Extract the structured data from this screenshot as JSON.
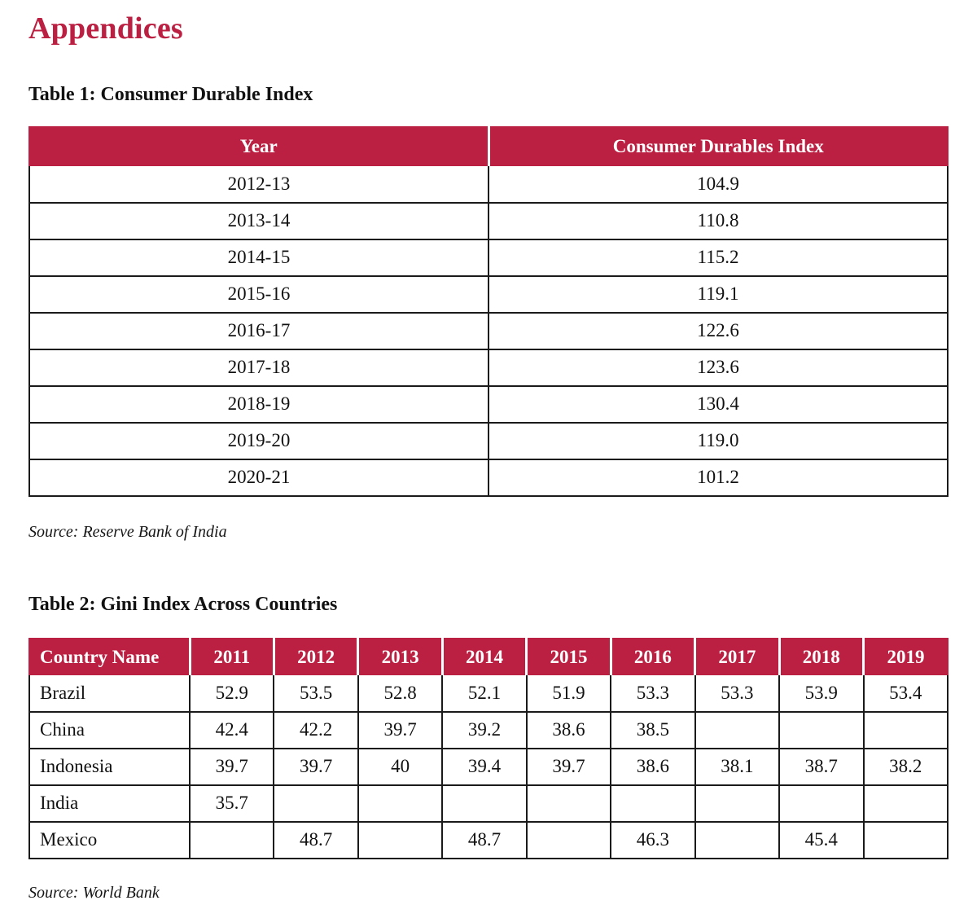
{
  "page": {
    "title": "Appendices"
  },
  "colors": {
    "accent": "#BB2042",
    "border": "#1A1A1A",
    "header_text": "#FFFFFF"
  },
  "table1": {
    "title": "Table 1: Consumer Durable Index",
    "source": "Source: Reserve Bank of India",
    "columns": [
      "Year",
      "Consumer Durables Index"
    ],
    "rows": [
      {
        "year": "2012-13",
        "value": "104.9"
      },
      {
        "year": "2013-14",
        "value": "110.8"
      },
      {
        "year": "2014-15",
        "value": "115.2"
      },
      {
        "year": "2015-16",
        "value": "119.1"
      },
      {
        "year": "2016-17",
        "value": "122.6"
      },
      {
        "year": "2017-18",
        "value": "123.6"
      },
      {
        "year": "2018-19",
        "value": "130.4"
      },
      {
        "year": "2019-20",
        "value": "119.0"
      },
      {
        "year": "2020-21",
        "value": "101.2"
      }
    ]
  },
  "table2": {
    "title": "Table 2: Gini Index Across Countries",
    "source": "Source: World Bank",
    "columns": [
      "Country Name",
      "2011",
      "2012",
      "2013",
      "2014",
      "2015",
      "2016",
      "2017",
      "2018",
      "2019"
    ],
    "rows": [
      {
        "country": "Brazil",
        "values": [
          "52.9",
          "53.5",
          "52.8",
          "52.1",
          "51.9",
          "53.3",
          "53.3",
          "53.9",
          "53.4"
        ]
      },
      {
        "country": "China",
        "values": [
          "42.4",
          "42.2",
          "39.7",
          "39.2",
          "38.6",
          "38.5",
          "",
          "",
          ""
        ]
      },
      {
        "country": "Indonesia",
        "values": [
          "39.7",
          "39.7",
          "40",
          "39.4",
          "39.7",
          "38.6",
          "38.1",
          "38.7",
          "38.2"
        ]
      },
      {
        "country": "India",
        "values": [
          "35.7",
          "",
          "",
          "",
          "",
          "",
          "",
          "",
          ""
        ]
      },
      {
        "country": "Mexico",
        "values": [
          "",
          "48.7",
          "",
          "48.7",
          "",
          "46.3",
          "",
          "45.4",
          ""
        ]
      }
    ]
  }
}
